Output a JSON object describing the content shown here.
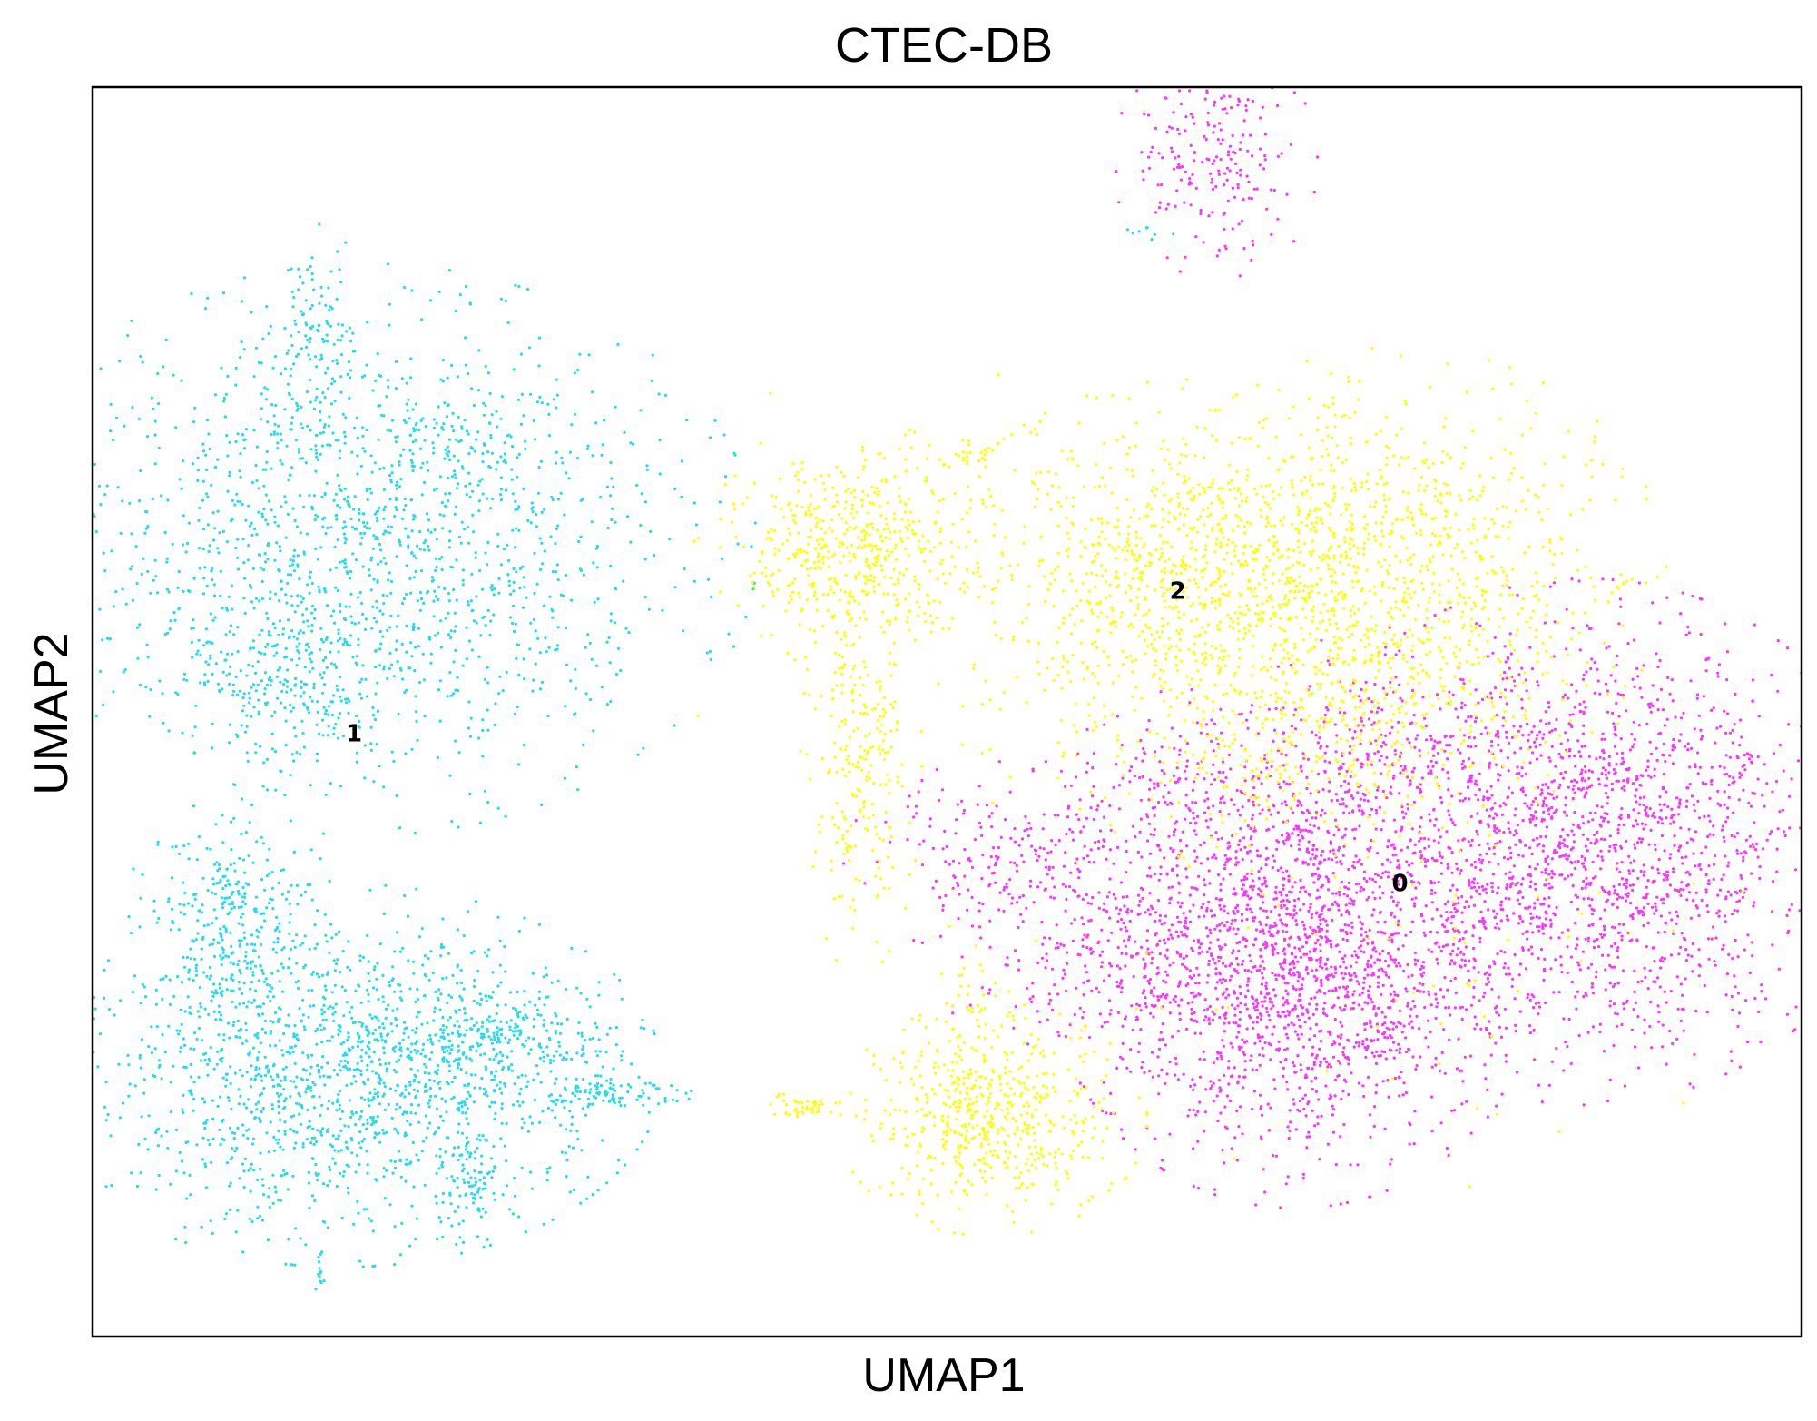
{
  "chart_data": {
    "type": "scatter",
    "title": "CTEC-DB",
    "xlabel": "UMAP1",
    "ylabel": "UMAP2",
    "xlim": [
      0,
      100
    ],
    "ylim": [
      0,
      100
    ],
    "grid": false,
    "legend": "none",
    "series": [
      {
        "name": "0",
        "color": "#ff33ff",
        "label_at": [
          76.5,
          36.3
        ],
        "blobs": [
          {
            "cx": 70.4,
            "cy": 30.3,
            "sx": 5.6,
            "sy": 7.7,
            "n": 1900
          },
          {
            "cx": 87.4,
            "cy": 39.6,
            "sx": 6.7,
            "sy": 8.1,
            "n": 1900
          },
          {
            "cx": 54.2,
            "cy": 38.3,
            "sx": 4.4,
            "sy": 3.0,
            "n": 230
          },
          {
            "cx": 60.5,
            "cy": 30.3,
            "sx": 4.6,
            "sy": 3.5,
            "n": 220
          },
          {
            "cx": 64.4,
            "cy": 44.0,
            "sx": 3.5,
            "sy": 3.0,
            "n": 180
          },
          {
            "cx": 76.4,
            "cy": 47.0,
            "sx": 3.5,
            "sy": 4.0,
            "n": 180
          },
          {
            "cx": 65.7,
            "cy": 94.0,
            "sx": 2.3,
            "sy": 3.8,
            "n": 200
          }
        ]
      },
      {
        "name": "1",
        "color": "#22ddee",
        "label_at": [
          15.3,
          48.3
        ],
        "blobs": [
          {
            "cx": 16.0,
            "cy": 63.0,
            "sx": 8.8,
            "sy": 8.8,
            "n": 1550
          },
          {
            "cx": 11.5,
            "cy": 51.5,
            "sx": 2.6,
            "sy": 3.2,
            "n": 200
          },
          {
            "cx": 13.1,
            "cy": 78.8,
            "sx": 1.1,
            "sy": 4.2,
            "n": 130
          },
          {
            "cx": 20.6,
            "cy": 72.5,
            "sx": 1.6,
            "sy": 1.4,
            "n": 45
          },
          {
            "cx": 14.6,
            "cy": 20.9,
            "sx": 7.2,
            "sy": 5.9,
            "n": 1500
          },
          {
            "cx": 8.0,
            "cy": 33.0,
            "sx": 2.4,
            "sy": 3.9,
            "n": 300
          },
          {
            "cx": 23.6,
            "cy": 23.5,
            "sx": 3.6,
            "sy": 2.2,
            "n": 240
          },
          {
            "cx": 29.9,
            "cy": 19.5,
            "sx": 2.0,
            "sy": 0.7,
            "n": 90
          },
          {
            "cx": 22.2,
            "cy": 12.0,
            "sx": 1.0,
            "sy": 1.9,
            "n": 70
          },
          {
            "cx": 13.4,
            "cy": 5.0,
            "sx": 0.2,
            "sy": 1.3,
            "n": 12
          },
          {
            "cx": 61.1,
            "cy": 88.5,
            "sx": 1.0,
            "sy": 0.3,
            "n": 8
          }
        ]
      },
      {
        "name": "2",
        "color": "#ffff00",
        "label_at": [
          63.5,
          59.7
        ],
        "blobs": [
          {
            "cx": 44.3,
            "cy": 63.4,
            "sx": 3.5,
            "sy": 3.8,
            "n": 500
          },
          {
            "cx": 44.9,
            "cy": 46.0,
            "sx": 1.4,
            "sy": 6.6,
            "n": 230
          },
          {
            "cx": 52.6,
            "cy": 17.4,
            "sx": 3.5,
            "sy": 3.6,
            "n": 540
          },
          {
            "cx": 41.8,
            "cy": 18.3,
            "sx": 1.1,
            "sy": 0.5,
            "n": 45
          },
          {
            "cx": 51.5,
            "cy": 25.5,
            "sx": 1.5,
            "sy": 3.0,
            "n": 50
          },
          {
            "cx": 64.4,
            "cy": 60.5,
            "sx": 6.0,
            "sy": 6.2,
            "n": 950
          },
          {
            "cx": 76.5,
            "cy": 61.0,
            "sx": 6.0,
            "sy": 7.0,
            "n": 900
          },
          {
            "cx": 71.0,
            "cy": 48.0,
            "sx": 6.0,
            "sy": 4.2,
            "n": 320
          },
          {
            "cx": 51.7,
            "cy": 70.7,
            "sx": 0.6,
            "sy": 0.5,
            "n": 22
          },
          {
            "cx": 50.0,
            "cy": 58.0,
            "sx": 6.0,
            "sy": 9.0,
            "n": 60
          },
          {
            "cx": 76.0,
            "cy": 32.0,
            "sx": 8.0,
            "sy": 9.0,
            "n": 70
          }
        ]
      }
    ]
  }
}
